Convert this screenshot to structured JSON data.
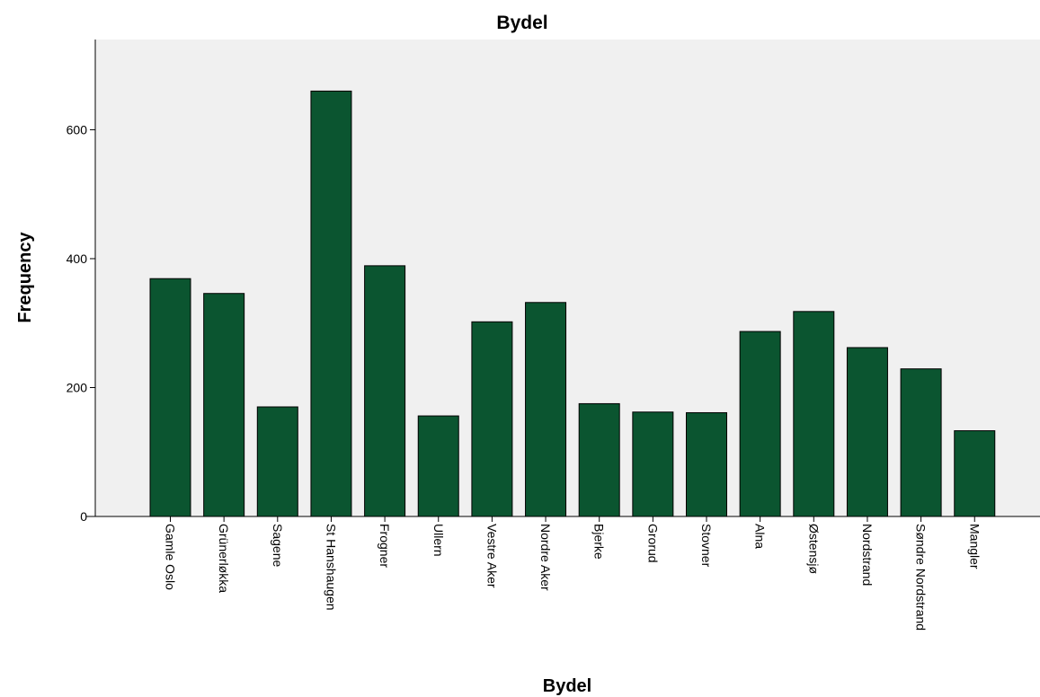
{
  "chart_data": {
    "type": "bar",
    "title": "Bydel",
    "xlabel": "Bydel",
    "ylabel": "Frequency",
    "categories": [
      "Gamle Oslo",
      "Grünerløkka",
      "Sagene",
      "St Hanshaugen",
      "Frogner",
      "Ullern",
      "Vestre Aker",
      "Nordre Aker",
      "Bjerke",
      "Grorud",
      "Stovner",
      "Alna",
      "Østensjø",
      "Nordstrand",
      "Søndre Nordstrand",
      "Mangler"
    ],
    "values": [
      369,
      346,
      170,
      660,
      389,
      156,
      302,
      332,
      175,
      162,
      161,
      287,
      318,
      262,
      229,
      133
    ],
    "ylim": [
      0,
      740
    ],
    "yticks": [
      0,
      200,
      400,
      600
    ],
    "grid": false,
    "bar_color": "#0b5530",
    "plot_background": "#f0f0f0"
  }
}
